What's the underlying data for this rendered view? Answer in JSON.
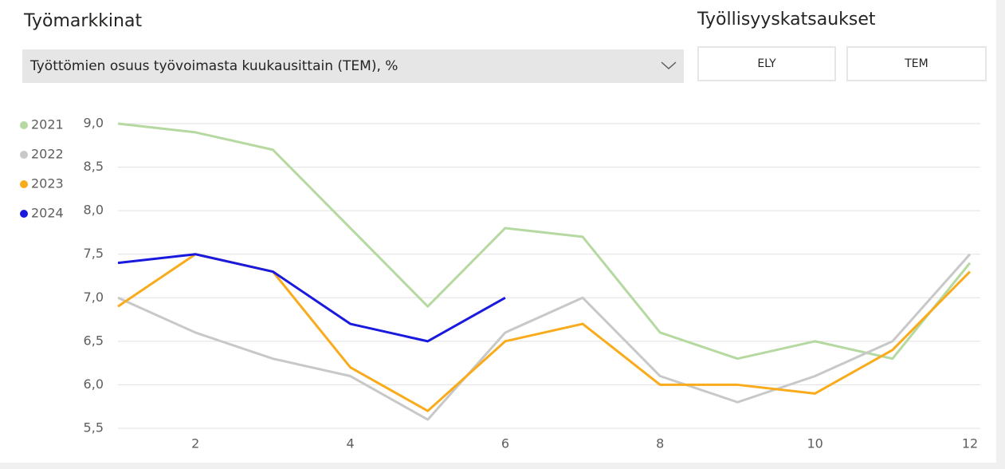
{
  "header": {
    "title": "Työmarkkinat"
  },
  "dropdown": {
    "selected": "Työttömien osuus työvoimasta kuukausittain (TEM), %"
  },
  "reports": {
    "title": "Työllisyyskatsaukset",
    "buttons": [
      "ELY",
      "TEM"
    ]
  },
  "chart_data": {
    "type": "line",
    "x": [
      1,
      2,
      3,
      4,
      5,
      6,
      7,
      8,
      9,
      10,
      11,
      12
    ],
    "series": [
      {
        "name": "2021",
        "color": "#b5d9a0",
        "values": [
          9.0,
          8.9,
          8.7,
          7.8,
          6.9,
          7.8,
          7.7,
          6.6,
          6.3,
          6.5,
          6.3,
          7.4
        ]
      },
      {
        "name": "2022",
        "color": "#c8c8c8",
        "values": [
          7.0,
          6.6,
          6.3,
          6.1,
          5.6,
          6.6,
          7.0,
          6.1,
          5.8,
          6.1,
          6.5,
          7.5
        ]
      },
      {
        "name": "2023",
        "color": "#f9ab1c",
        "values": [
          6.9,
          7.5,
          7.3,
          6.2,
          5.7,
          6.5,
          6.7,
          6.0,
          6.0,
          5.9,
          6.4,
          7.3
        ]
      },
      {
        "name": "2024",
        "color": "#1a1adf",
        "values": [
          7.4,
          7.5,
          7.3,
          6.7,
          6.5,
          7.0,
          null,
          null,
          null,
          null,
          null,
          null
        ]
      }
    ],
    "xlim": [
      1,
      12
    ],
    "xticks": [
      2,
      4,
      6,
      8,
      10,
      12
    ],
    "ylim": [
      5.5,
      9.0
    ],
    "yticks": [
      {
        "value": 5.5,
        "label": "5,5"
      },
      {
        "value": 6.0,
        "label": "6,0"
      },
      {
        "value": 6.5,
        "label": "6,5"
      },
      {
        "value": 7.0,
        "label": "7,0"
      },
      {
        "value": 7.5,
        "label": "7,5"
      },
      {
        "value": 8.0,
        "label": "8,0"
      },
      {
        "value": 8.5,
        "label": "8,5"
      },
      {
        "value": 9.0,
        "label": "9,0"
      }
    ],
    "grid": true,
    "legend": "top-left"
  }
}
